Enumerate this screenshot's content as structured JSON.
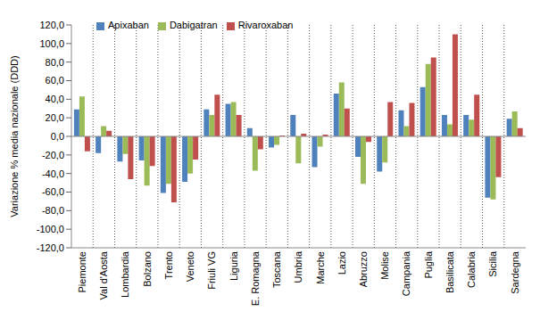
{
  "chart_data": {
    "type": "bar",
    "y_label": "Variazione % media nazionale (DDD)",
    "categories": [
      "Piemonte",
      "Val d'Aosta",
      "Lombardia",
      "Bolzano",
      "Trento",
      "Veneto",
      "Friuli VG",
      "Liguria",
      "E. Romagna",
      "Toscana",
      "Umbria",
      "Marche",
      "Lazio",
      "Abruzzo",
      "Molise",
      "Campania",
      "Puglia",
      "Basilicata",
      "Calabria",
      "Sicilia",
      "Sardegna"
    ],
    "series": [
      {
        "name": "Apixaban",
        "color": "#4f81bd",
        "values": [
          29,
          -18,
          -27,
          -26,
          -61,
          -49,
          29,
          35,
          9,
          -12,
          23,
          -33,
          46,
          -22,
          -38,
          28,
          53,
          23,
          23,
          -66,
          19
        ]
      },
      {
        "name": "Dabigatran",
        "color": "#9bbb59",
        "values": [
          43,
          11,
          -19,
          -53,
          -51,
          -40,
          23,
          37,
          -37,
          -9,
          -29,
          -11,
          58,
          -51,
          -28,
          11,
          78,
          13,
          18,
          -68,
          27
        ]
      },
      {
        "name": "Rivaroxaban",
        "color": "#c0504d",
        "values": [
          -16,
          6,
          -46,
          -32,
          -71,
          -25,
          45,
          23,
          -14,
          1,
          3,
          2,
          30,
          -6,
          37,
          36,
          85,
          110,
          45,
          -44,
          9
        ]
      }
    ],
    "ylim": [
      -120,
      120
    ],
    "yticks": [
      {
        "value": -120,
        "label": "-120,0"
      },
      {
        "value": -100,
        "label": "-100,0"
      },
      {
        "value": -80,
        "label": "-80,0"
      },
      {
        "value": -60,
        "label": "-60,0"
      },
      {
        "value": -40,
        "label": "-40,0"
      },
      {
        "value": -20,
        "label": "-20,0"
      },
      {
        "value": 0,
        "label": "0,0"
      },
      {
        "value": 20,
        "label": "20,0"
      },
      {
        "value": 40,
        "label": "40,0"
      },
      {
        "value": 60,
        "label": "60,0"
      },
      {
        "value": 80,
        "label": "80,0"
      },
      {
        "value": 100,
        "label": "100,0"
      },
      {
        "value": 120,
        "label": "120,0"
      }
    ],
    "grid": true,
    "legend": "upper left"
  }
}
